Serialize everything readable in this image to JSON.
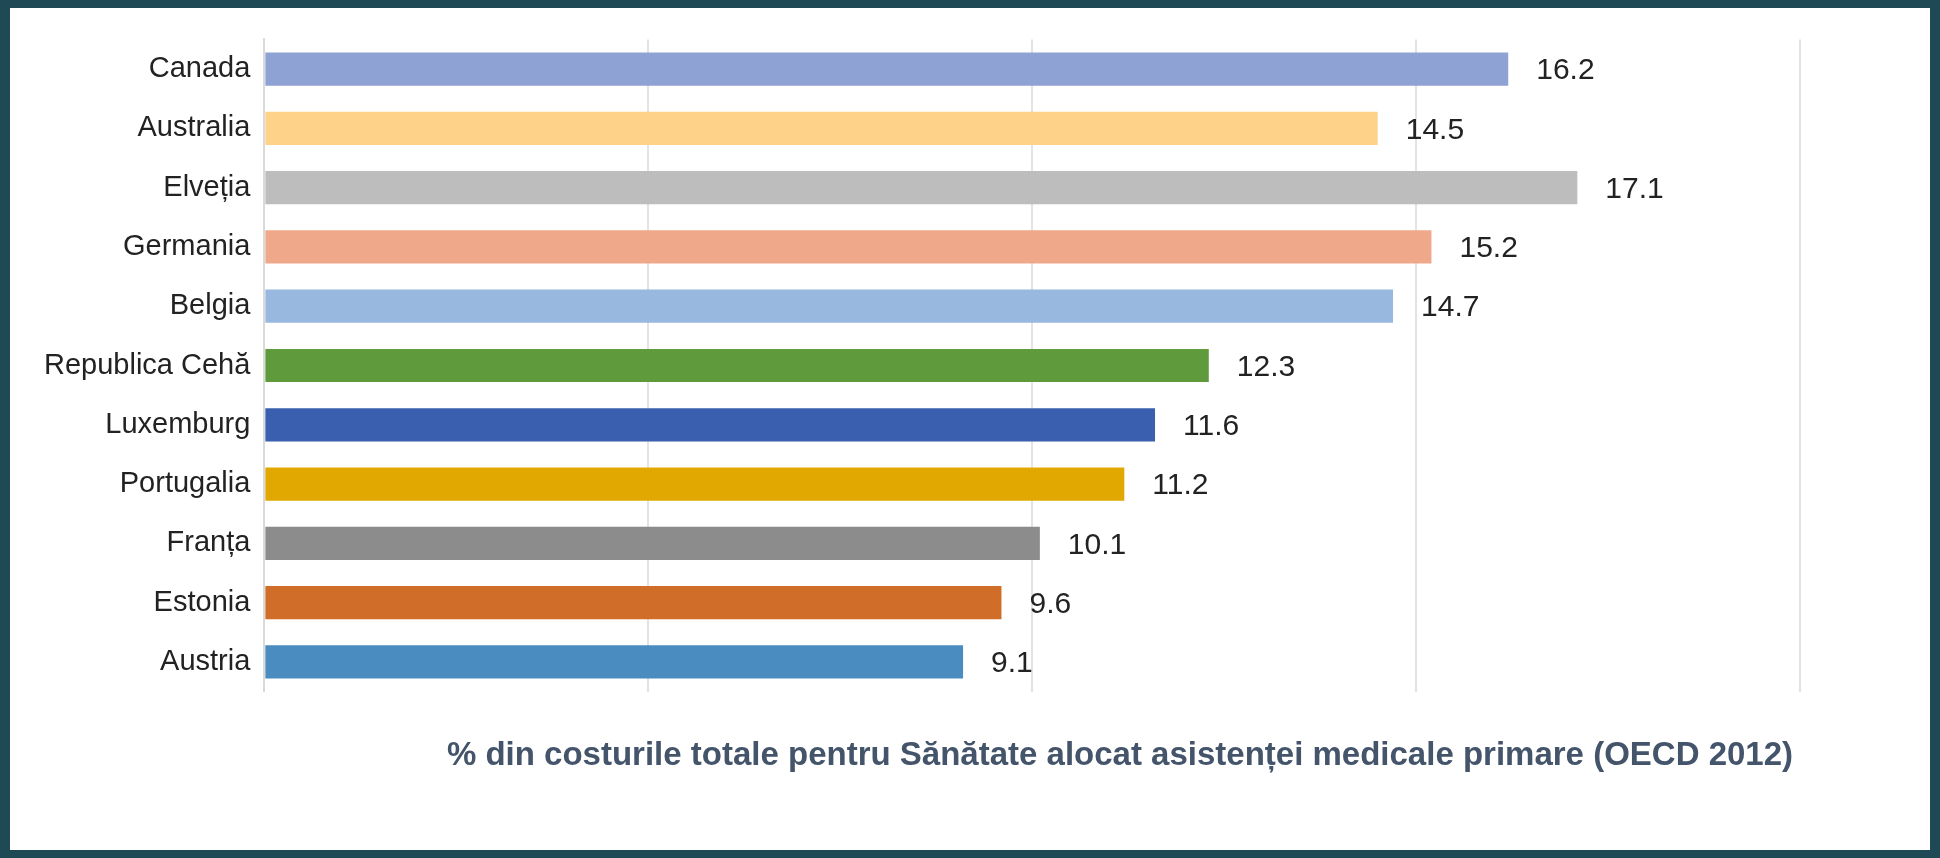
{
  "chart_data": {
    "type": "bar",
    "orientation": "horizontal",
    "title": "% din costurile totale pentru Sănătate alocat asistenței medicale primare (OECD 2012)",
    "categories": [
      "Canada",
      "Australia",
      "Elveția",
      "Germania",
      "Belgia",
      "Republica Cehă",
      "Luxemburg",
      "Portugalia",
      "Franța",
      "Estonia",
      "Austria"
    ],
    "values": [
      16.2,
      14.5,
      17.1,
      15.2,
      14.7,
      12.3,
      11.6,
      11.2,
      10.1,
      9.6,
      9.1
    ],
    "colors": [
      "#8fa2d4",
      "#ffd28a",
      "#bdbdbd",
      "#f0a88a",
      "#98b8e0",
      "#5f9a3c",
      "#3a5fae",
      "#e0a800",
      "#8c8c8c",
      "#d06d28",
      "#4a8bc0"
    ],
    "xlim": [
      0,
      20
    ],
    "xticks": [
      {
        "value": 0,
        "label": null
      },
      {
        "value": 5,
        "label": null
      },
      {
        "value": 10,
        "label": null
      },
      {
        "value": 15,
        "label": null
      },
      {
        "value": 20,
        "label": null
      }
    ],
    "tick_labels": "y",
    "grid": "x",
    "data_labels": true,
    "legend": false
  }
}
